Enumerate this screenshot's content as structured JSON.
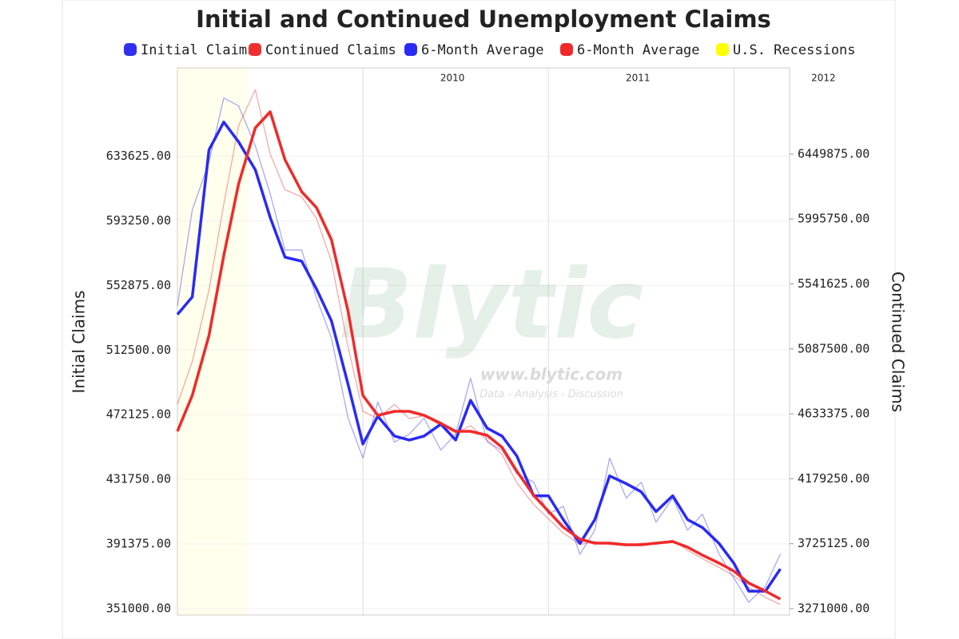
{
  "chart_data": {
    "type": "line",
    "title": "Initial and Continued Unemployment Claims",
    "y_label": "Initial Claims",
    "y2_label": "Continued Claims",
    "watermark": {
      "title": "Blytic",
      "url": "www.blytic.com",
      "tagline": "Data - Analysis - Discussion"
    },
    "xlim": [
      2009,
      2012.3
    ],
    "xticks": [
      2010,
      2011,
      2012
    ],
    "ylim": [
      347000,
      688750
    ],
    "yticks": [
      {
        "value": 351000,
        "label": "351000.00"
      },
      {
        "value": 391375,
        "label": "391375.00"
      },
      {
        "value": 431750,
        "label": "431750.00"
      },
      {
        "value": 472125,
        "label": "472125.00"
      },
      {
        "value": 512500,
        "label": "512500.00"
      },
      {
        "value": 552875,
        "label": "552875.00"
      },
      {
        "value": 593250,
        "label": "593250.00"
      },
      {
        "value": 633625,
        "label": "633625.00"
      }
    ],
    "y2lim": [
      3226300,
      7052700
    ],
    "y2ticks": [
      {
        "value": 3271000,
        "label": "3271000.00"
      },
      {
        "value": 3725125,
        "label": "3725125.00"
      },
      {
        "value": 4179250,
        "label": "4179250.00"
      },
      {
        "value": 4633375,
        "label": "4633375.00"
      },
      {
        "value": 5087500,
        "label": "5087500.00"
      },
      {
        "value": 5541625,
        "label": "5541625.00"
      },
      {
        "value": 5995750,
        "label": "5995750.00"
      },
      {
        "value": 6449875,
        "label": "6449875.00"
      }
    ],
    "grid": true,
    "x": [
      2009.0,
      2009.08,
      2009.17,
      2009.25,
      2009.33,
      2009.42,
      2009.5,
      2009.58,
      2009.67,
      2009.75,
      2009.83,
      2009.92,
      2010.0,
      2010.08,
      2010.17,
      2010.25,
      2010.33,
      2010.42,
      2010.5,
      2010.58,
      2010.67,
      2010.75,
      2010.83,
      2010.92,
      2011.0,
      2011.08,
      2011.17,
      2011.25,
      2011.33,
      2011.42,
      2011.5,
      2011.58,
      2011.67,
      2011.75,
      2011.83,
      2011.92,
      2012.0,
      2012.08,
      2012.17,
      2012.25
    ],
    "series": [
      {
        "name": "Initial Claims",
        "color": "#3030f0",
        "width": 1.2,
        "opacity": 0.45,
        "values": [
          540000,
          600000,
          630000,
          670000,
          665000,
          640000,
          610000,
          575000,
          575000,
          545000,
          520000,
          470000,
          445000,
          480000,
          455000,
          460000,
          470000,
          450000,
          460000,
          495000,
          455000,
          450000,
          435000,
          430000,
          410000,
          415000,
          385000,
          400000,
          445000,
          420000,
          430000,
          405000,
          420000,
          400000,
          410000,
          385000,
          370000,
          355000,
          365000,
          385000
        ]
      },
      {
        "name": "Continued Claims",
        "color": "#f03030",
        "width": 1.2,
        "opacity": 0.45,
        "axis": "y2",
        "values": [
          4700000,
          5000000,
          5500000,
          6100000,
          6650000,
          6900000,
          6450000,
          6200000,
          6150000,
          6000000,
          5700000,
          5100000,
          4650000,
          4600000,
          4700000,
          4600000,
          4620000,
          4550000,
          4500000,
          4550000,
          4450000,
          4350000,
          4150000,
          4000000,
          3900000,
          3800000,
          3720000,
          3740000,
          3720000,
          3710000,
          3730000,
          3720000,
          3750000,
          3680000,
          3620000,
          3560000,
          3500000,
          3420000,
          3350000,
          3300000
        ]
      },
      {
        "name": "6-Month Average",
        "color": "#2a2af5",
        "width": 3.5,
        "opacity": 1,
        "values": [
          534700,
          545700,
          637500,
          654900,
          642500,
          625100,
          595300,
          570500,
          568000,
          550600,
          530800,
          491000,
          453800,
          471200,
          458800,
          456300,
          458800,
          466200,
          456300,
          481100,
          463700,
          458800,
          446300,
          421500,
          421500,
          406600,
          391700,
          406600,
          433900,
          429000,
          424000,
          411600,
          421500,
          406600,
          401700,
          391700,
          379300,
          361900,
          361900,
          375800
        ]
      },
      {
        "name": "6-Month Average",
        "color": "#f02a2a",
        "width": 3.5,
        "opacity": 1,
        "axis": "y2",
        "values": [
          4511100,
          4762500,
          5181400,
          5740000,
          6242800,
          6633800,
          6745500,
          6410300,
          6186900,
          6075200,
          5851700,
          5349000,
          4762500,
          4622800,
          4650700,
          4650700,
          4622800,
          4567000,
          4511100,
          4511100,
          4483200,
          4399400,
          4231800,
          4064200,
          3952500,
          3840800,
          3757000,
          3729100,
          3729100,
          3717900,
          3717900,
          3729100,
          3740200,
          3701100,
          3645300,
          3589400,
          3533500,
          3449800,
          3393900,
          3338000
        ]
      }
    ],
    "shaded_regions": [
      {
        "name": "U.S. Recessions",
        "color": "#ffff00",
        "start": 2009,
        "end": 2009.38
      }
    ]
  }
}
